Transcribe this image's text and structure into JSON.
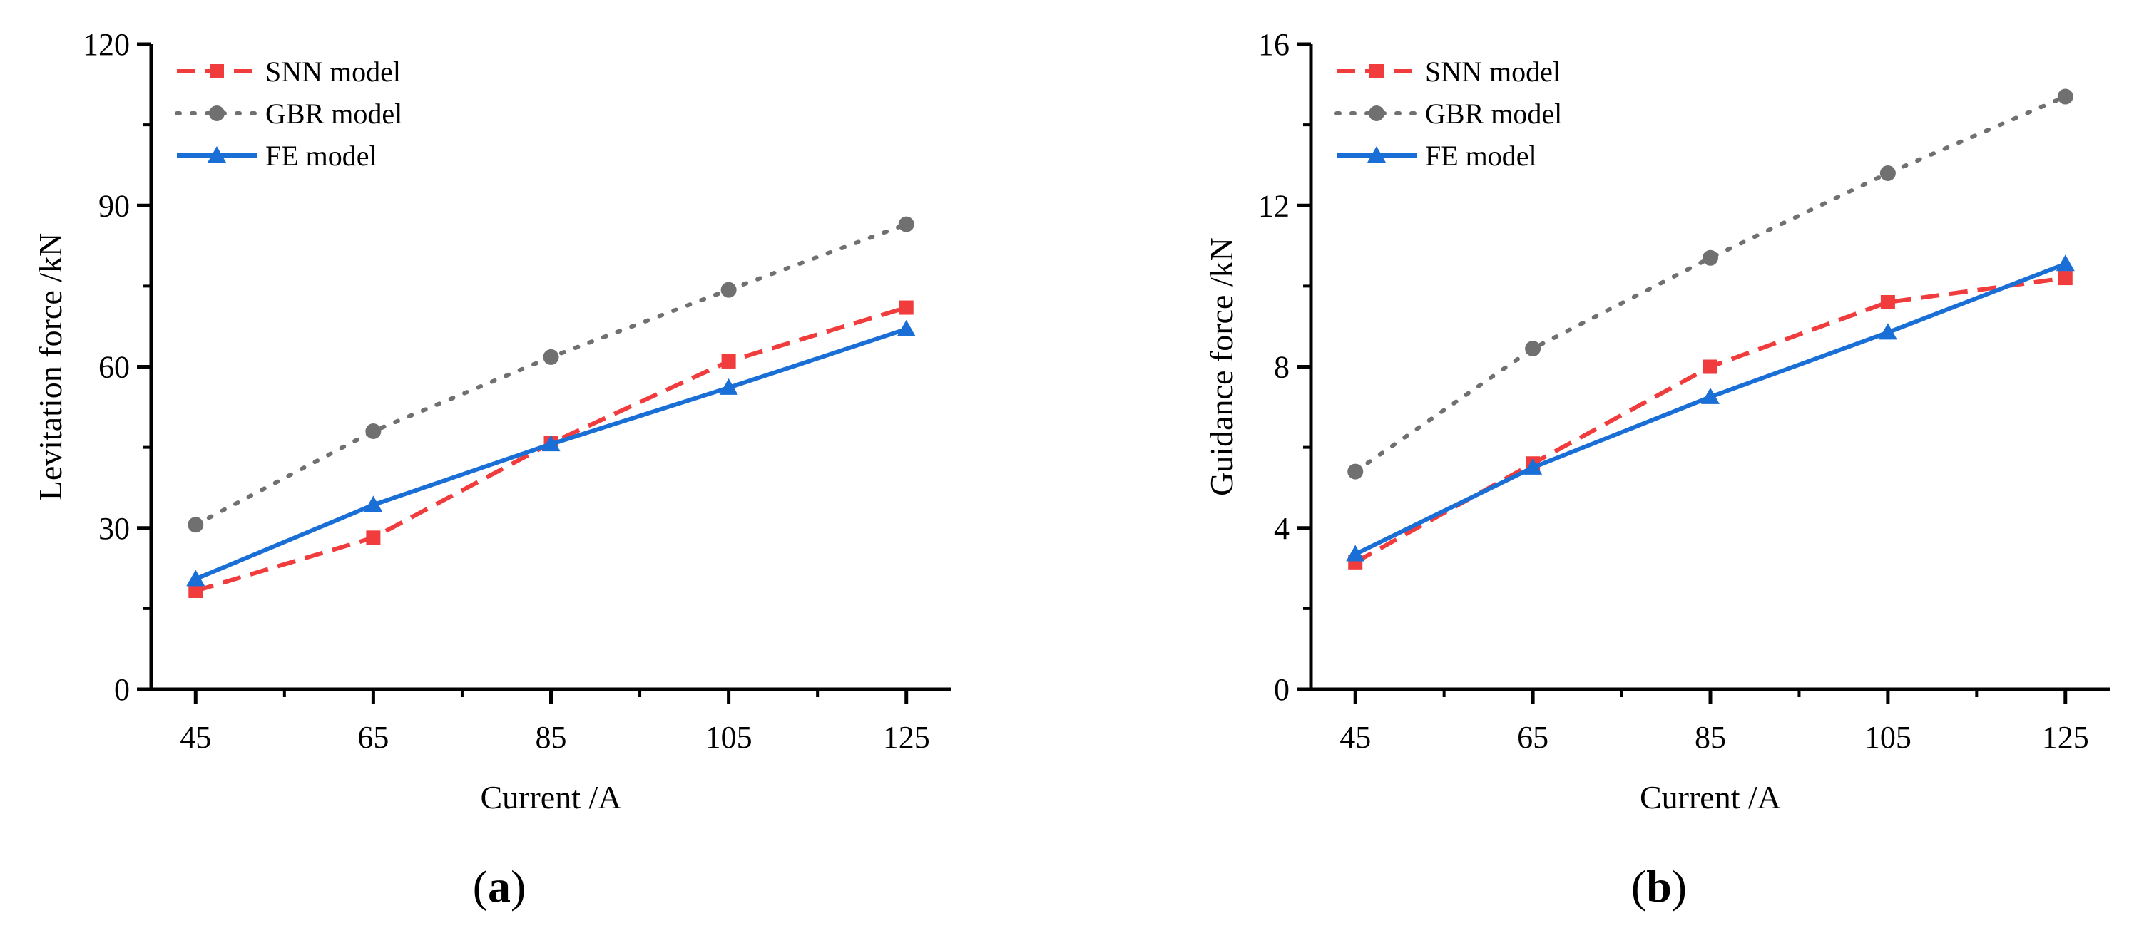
{
  "chart_data": [
    {
      "type": "line",
      "caption": {
        "open": "(",
        "letter": "a",
        "close": ")"
      },
      "title": "",
      "xlabel": "Current /A",
      "ylabel": "Levitation force /kN",
      "x": [
        45,
        65,
        85,
        105,
        125
      ],
      "xticks": [
        "45",
        "65",
        "85",
        "105",
        "125"
      ],
      "xlim": [
        40,
        130
      ],
      "ylim": [
        0,
        120
      ],
      "yticks": [
        "0",
        "30",
        "60",
        "90",
        "120"
      ],
      "legend_position": "top-left",
      "series": [
        {
          "name": "SNN model",
          "color": "#f03c3c",
          "style": "dashed",
          "marker": "square",
          "values": [
            18.3,
            28.2,
            45.8,
            61.0,
            71.0
          ]
        },
        {
          "name": "GBR model",
          "color": "#707070",
          "style": "dotted",
          "marker": "circle",
          "values": [
            30.6,
            48.0,
            61.8,
            74.3,
            86.5
          ]
        },
        {
          "name": "FE model",
          "color": "#1a6fd6",
          "style": "solid",
          "marker": "triangle",
          "values": [
            20.5,
            34.3,
            45.6,
            56.1,
            67.0
          ]
        }
      ]
    },
    {
      "type": "line",
      "caption": {
        "open": "(",
        "letter": "b",
        "close": ")"
      },
      "title": "",
      "xlabel": "Current /A",
      "ylabel": "Guidance force /kN",
      "x": [
        45,
        65,
        85,
        105,
        125
      ],
      "xticks": [
        "45",
        "65",
        "85",
        "105",
        "125"
      ],
      "xlim": [
        40,
        130
      ],
      "ylim": [
        0,
        16
      ],
      "yticks": [
        "0",
        "4",
        "8",
        "12",
        "16"
      ],
      "legend_position": "top-left",
      "series": [
        {
          "name": "SNN model",
          "color": "#f03c3c",
          "style": "dashed",
          "marker": "square",
          "values": [
            3.15,
            5.6,
            8.0,
            9.6,
            10.2
          ]
        },
        {
          "name": "GBR model",
          "color": "#707070",
          "style": "dotted",
          "marker": "circle",
          "values": [
            5.4,
            8.45,
            10.7,
            12.8,
            14.7
          ]
        },
        {
          "name": "FE model",
          "color": "#1a6fd6",
          "style": "solid",
          "marker": "triangle",
          "values": [
            3.35,
            5.5,
            7.25,
            8.85,
            10.55
          ]
        }
      ]
    }
  ]
}
